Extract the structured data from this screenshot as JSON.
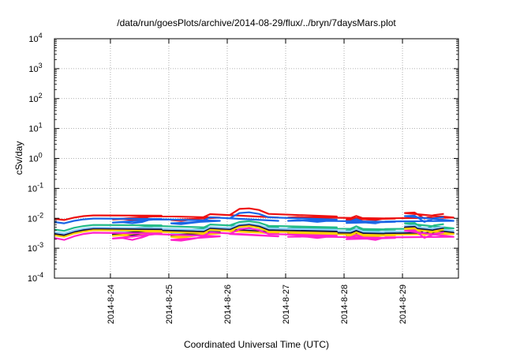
{
  "chart_data": {
    "type": "line",
    "title": "/data/run/goesPlots/archive/2014-08-29/flux/../bryn/7daysMars.plot",
    "xlabel": "Coordinated Universal Time (UTC)",
    "ylabel": "cSv/day",
    "yscale": "log",
    "ylim": [
      0.0001,
      10000
    ],
    "y_ticks": [
      {
        "base": "10",
        "exp": "-4",
        "value": 0.0001
      },
      {
        "base": "10",
        "exp": "-3",
        "value": 0.001
      },
      {
        "base": "10",
        "exp": "-2",
        "value": 0.01
      },
      {
        "base": "10",
        "exp": "-1",
        "value": 0.1
      },
      {
        "base": "10",
        "exp": "0",
        "value": 1
      },
      {
        "base": "10",
        "exp": "1",
        "value": 10
      },
      {
        "base": "10",
        "exp": "2",
        "value": 100
      },
      {
        "base": "10",
        "exp": "3",
        "value": 1000
      },
      {
        "base": "10",
        "exp": "4",
        "value": 10000
      }
    ],
    "xlim": [
      "2014-08-23 01:00",
      "2014-08-29 23:00"
    ],
    "x_ticks": [
      "2014-8-24",
      "2014-8-25",
      "2014-8-26",
      "2014-8-27",
      "2014-8-28",
      "2014-8-29"
    ],
    "grid": true,
    "x_dates": [
      "2014-08-23",
      "2014-08-23",
      "2014-08-23",
      "2014-08-23",
      "2014-08-23",
      "2014-08-24",
      "2014-08-24",
      "2014-08-24",
      "2014-08-24",
      "2014-08-24",
      "2014-08-24",
      "2014-08-25",
      "2014-08-25",
      "2014-08-25",
      "2014-08-25",
      "2014-08-25",
      "2014-08-25",
      "2014-08-26",
      "2014-08-26",
      "2014-08-26",
      "2014-08-26",
      "2014-08-26",
      "2014-08-26",
      "2014-08-27",
      "2014-08-27",
      "2014-08-27",
      "2014-08-27",
      "2014-08-27",
      "2014-08-27",
      "2014-08-28",
      "2014-08-28",
      "2014-08-28",
      "2014-08-28",
      "2014-08-28",
      "2014-08-28",
      "2014-08-29",
      "2014-08-29",
      "2014-08-29",
      "2014-08-29",
      "2014-08-29",
      "2014-08-29"
    ],
    "x_times": [
      "01:00",
      "05:00",
      "09:00",
      "13:00",
      "17:00",
      "21:00",
      "01:00",
      "05:00",
      "09:00",
      "13:00",
      "17:00",
      "21:00",
      "01:00",
      "05:00",
      "09:00",
      "13:00",
      "17:00",
      "21:00",
      "01:00",
      "05:00",
      "09:00",
      "13:00",
      "17:00",
      "21:00",
      "01:00",
      "05:00",
      "09:00",
      "13:00",
      "17:00",
      "21:00",
      "01:00",
      "05:00",
      "09:00",
      "13:00",
      "17:00",
      "21:00",
      "01:00",
      "05:00",
      "09:00",
      "13:00",
      "17:00"
    ],
    "series": [
      {
        "color": "#ee1111",
        "values": [
          0.0095,
          0.0088,
          0.0105,
          0.0118,
          0.0125,
          0.0122,
          0.0092,
          0.0095,
          0.0088,
          0.0096,
          0.012,
          0.0105,
          0.0088,
          0.0082,
          0.009,
          0.0098,
          0.0138,
          0.0105,
          0.0128,
          0.0205,
          0.0215,
          0.019,
          0.014,
          0.0115,
          0.0105,
          0.011,
          0.0105,
          0.0098,
          0.0105,
          0.0098,
          0.009,
          0.012,
          0.0092,
          0.0088,
          0.01,
          0.0105,
          0.015,
          0.0155,
          0.0098,
          0.0128,
          0.014
        ]
      },
      {
        "color": "#1a66e6",
        "values": [
          0.0075,
          0.0068,
          0.0082,
          0.0092,
          0.0098,
          0.0095,
          0.0072,
          0.0074,
          0.0069,
          0.0075,
          0.0095,
          0.0082,
          0.0068,
          0.0064,
          0.007,
          0.0076,
          0.0108,
          0.0082,
          0.01,
          0.015,
          0.0158,
          0.014,
          0.0108,
          0.009,
          0.0082,
          0.0086,
          0.0082,
          0.0076,
          0.0082,
          0.0076,
          0.007,
          0.0094,
          0.0072,
          0.0068,
          0.0078,
          0.0082,
          0.0118,
          0.0122,
          0.0076,
          0.01,
          0.011
        ]
      },
      {
        "color": "#22bb88",
        "values": [
          0.0042,
          0.0038,
          0.0048,
          0.0055,
          0.006,
          0.0058,
          0.004,
          0.0042,
          0.0038,
          0.0044,
          0.0056,
          0.0048,
          0.0038,
          0.0035,
          0.004,
          0.0044,
          0.0062,
          0.0048,
          0.0058,
          0.0075,
          0.008,
          0.0072,
          0.0056,
          0.005,
          0.0046,
          0.0048,
          0.0046,
          0.0042,
          0.0046,
          0.0042,
          0.0039,
          0.0054,
          0.004,
          0.0038,
          0.0044,
          0.0046,
          0.0068,
          0.007,
          0.0042,
          0.0058,
          0.0064
        ]
      },
      {
        "color": "#88ccff",
        "values": [
          0.0034,
          0.0031,
          0.0039,
          0.0045,
          0.0049,
          0.0047,
          0.0033,
          0.0034,
          0.0031,
          0.0036,
          0.0046,
          0.0039,
          0.0031,
          0.0029,
          0.0033,
          0.0036,
          0.0051,
          0.0039,
          0.0047,
          0.0062,
          0.0066,
          0.0059,
          0.0046,
          0.0041,
          0.0038,
          0.0039,
          0.0038,
          0.0034,
          0.0038,
          0.0034,
          0.0032,
          0.0044,
          0.0033,
          0.0031,
          0.0036,
          0.0038,
          0.0056,
          0.0058,
          0.0034,
          0.0047,
          0.0052
        ]
      },
      {
        "color": "#111144",
        "values": [
          0.003,
          0.0027,
          0.0034,
          0.004,
          0.0044,
          0.0042,
          0.0029,
          0.003,
          0.0027,
          0.0031,
          0.004,
          0.0034,
          0.0027,
          0.0025,
          0.0028,
          0.0031,
          0.0045,
          0.0034,
          0.0041,
          0.0056,
          0.006,
          0.0053,
          0.004,
          0.0036,
          0.0033,
          0.0034,
          0.0033,
          0.003,
          0.0033,
          0.003,
          0.0028,
          0.0038,
          0.0029,
          0.0027,
          0.0031,
          0.0033,
          0.005,
          0.0052,
          0.003,
          0.0041,
          0.0046
        ]
      },
      {
        "color": "#ffcc00",
        "values": [
          0.0027,
          0.0024,
          0.0031,
          0.0036,
          0.004,
          0.0038,
          0.0026,
          0.0027,
          0.0024,
          0.0028,
          0.0036,
          0.0031,
          0.0024,
          0.0022,
          0.0025,
          0.0028,
          0.0041,
          0.0031,
          0.0037,
          0.0051,
          0.0055,
          0.0048,
          0.0036,
          0.0032,
          0.003,
          0.0031,
          0.003,
          0.0027,
          0.003,
          0.0027,
          0.0025,
          0.0034,
          0.0026,
          0.0024,
          0.0028,
          0.003,
          0.0045,
          0.0047,
          0.0027,
          0.0037,
          0.0042
        ]
      },
      {
        "color": "#ff22cc",
        "values": [
          0.0022,
          0.0019,
          0.0025,
          0.003,
          0.0033,
          0.0031,
          0.0021,
          0.0022,
          0.0019,
          0.0023,
          0.003,
          0.0025,
          0.0019,
          0.0018,
          0.002,
          0.0023,
          0.0034,
          0.0025,
          0.003,
          0.0043,
          0.0047,
          0.004,
          0.003,
          0.0026,
          0.0024,
          0.0025,
          0.0024,
          0.0022,
          0.0024,
          0.0022,
          0.002,
          0.0028,
          0.0021,
          0.0019,
          0.0023,
          0.0024,
          0.0038,
          0.004,
          0.0022,
          0.003,
          0.0034
        ]
      }
    ]
  }
}
